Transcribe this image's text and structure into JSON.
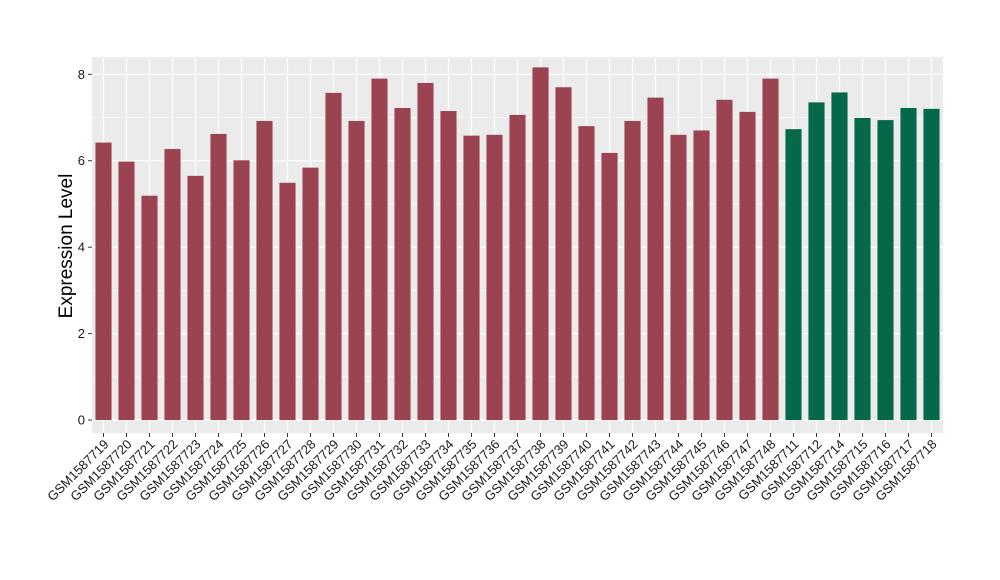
{
  "chart_data": {
    "type": "bar",
    "ylabel": "Expression Level",
    "xlabel": "",
    "ylim": [
      -0.3,
      8.4
    ],
    "yticks": [
      0,
      2,
      4,
      6,
      8
    ],
    "grid": true,
    "categories": [
      "GSM1587719",
      "GSM1587720",
      "GSM1587721",
      "GSM1587722",
      "GSM1587723",
      "GSM1587724",
      "GSM1587725",
      "GSM1587726",
      "GSM1587727",
      "GSM1587728",
      "GSM1587729",
      "GSM1587730",
      "GSM1587731",
      "GSM1587732",
      "GSM1587733",
      "GSM1587734",
      "GSM1587735",
      "GSM1587736",
      "GSM1587737",
      "GSM1587738",
      "GSM1587739",
      "GSM1587740",
      "GSM1587741",
      "GSM1587742",
      "GSM1587743",
      "GSM1587744",
      "GSM1587745",
      "GSM1587746",
      "GSM1587747",
      "GSM1587748",
      "GSM1587711",
      "GSM1587712",
      "GSM1587714",
      "GSM1587715",
      "GSM1587716",
      "GSM1587717",
      "GSM1587718"
    ],
    "values": [
      6.42,
      5.98,
      5.19,
      6.27,
      5.65,
      6.62,
      6.01,
      6.92,
      5.49,
      5.84,
      7.57,
      6.92,
      7.9,
      7.22,
      7.8,
      7.15,
      6.58,
      6.6,
      7.06,
      8.16,
      7.7,
      6.8,
      6.18,
      6.92,
      7.46,
      6.6,
      6.7,
      7.41,
      7.13,
      7.9,
      6.73,
      7.35,
      7.58,
      6.99,
      6.94,
      7.22,
      7.2
    ],
    "group_colors": {
      "a": "#9b4350",
      "b": "#05684a"
    },
    "bar_groups": [
      "a",
      "a",
      "a",
      "a",
      "a",
      "a",
      "a",
      "a",
      "a",
      "a",
      "a",
      "a",
      "a",
      "a",
      "a",
      "a",
      "a",
      "a",
      "a",
      "a",
      "a",
      "a",
      "a",
      "a",
      "a",
      "a",
      "a",
      "a",
      "a",
      "a",
      "b",
      "b",
      "b",
      "b",
      "b",
      "b",
      "b"
    ],
    "panel_background": "#ebebeb",
    "grid_color": "#ffffff"
  }
}
